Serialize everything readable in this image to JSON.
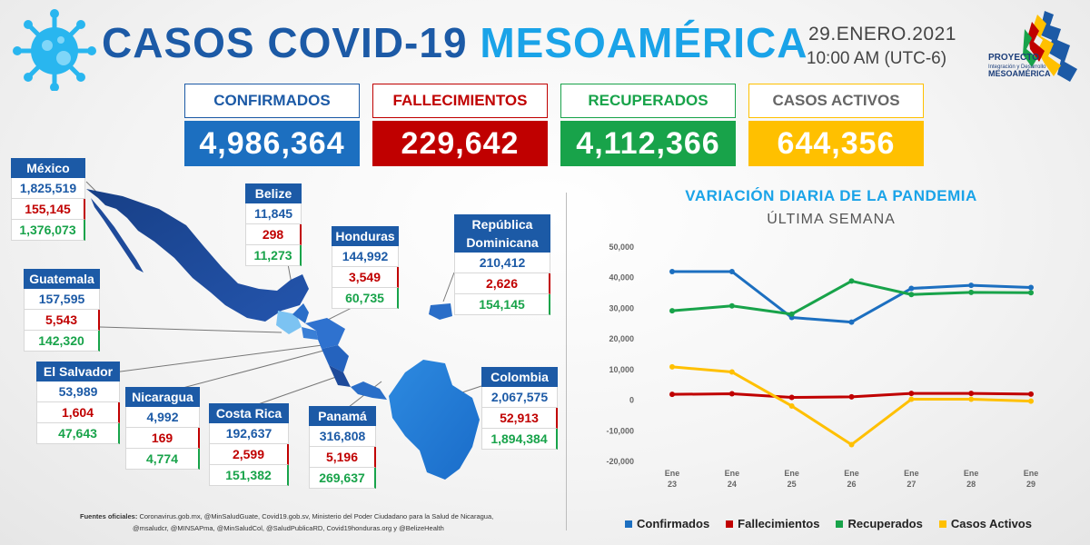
{
  "header": {
    "title_part1": "CASOS COVID-19 ",
    "title_part2": "MESOAMÉRICA",
    "date": "29.ENERO.2021",
    "time": "10:00 AM (UTC-6)",
    "logo": {
      "line1": "PROYECTO",
      "line2": "Integración y Desarrollo",
      "line3": "MESOAMÉRICA"
    }
  },
  "kpis": [
    {
      "label": "CONFIRMADOS",
      "value": "4,986,364",
      "color": "#1c6fc0",
      "label_color": "#1c5aa6"
    },
    {
      "label": "FALLECIMIENTOS",
      "value": "229,642",
      "color": "#c00000",
      "label_color": "#c00000"
    },
    {
      "label": "RECUPERADOS",
      "value": "4,112,366",
      "color": "#18a34a",
      "label_color": "#18a34a"
    },
    {
      "label": "CASOS ACTIVOS",
      "value": "644,356",
      "color": "#ffc000",
      "label_color": "#666666"
    }
  ],
  "countries": [
    {
      "name": "México",
      "confirmed": "1,825,519",
      "deaths": "155,145",
      "recovered": "1,376,073"
    },
    {
      "name": "Belize",
      "confirmed": "11,845",
      "deaths": "298",
      "recovered": "11,273"
    },
    {
      "name": "Honduras",
      "confirmed": "144,992",
      "deaths": "3,549",
      "recovered": "60,735"
    },
    {
      "name": "República Dominicana",
      "confirmed": "210,412",
      "deaths": "2,626",
      "recovered": "154,145"
    },
    {
      "name": "Guatemala",
      "confirmed": "157,595",
      "deaths": "5,543",
      "recovered": "142,320"
    },
    {
      "name": "El Salvador",
      "confirmed": "53,989",
      "deaths": "1,604",
      "recovered": "47,643"
    },
    {
      "name": "Nicaragua",
      "confirmed": "4,992",
      "deaths": "169",
      "recovered": "4,774"
    },
    {
      "name": "Costa Rica",
      "confirmed": "192,637",
      "deaths": "2,599",
      "recovered": "151,382"
    },
    {
      "name": "Panamá",
      "confirmed": "316,808",
      "deaths": "5,196",
      "recovered": "269,637"
    },
    {
      "name": "Colombia",
      "confirmed": "2,067,575",
      "deaths": "52,913",
      "recovered": "1,894,384"
    }
  ],
  "sources": {
    "label": "Fuentes oficiales:",
    "line1": "Coronavirus.gob.mx, @MinSaludGuate, Covid19.gob.sv, Ministerio del Poder Ciudadano para la Salud de Nicaragua,",
    "line2": "@msaludcr, @MINSAPma, @MinSaludCol, @SaludPublicaRD, Covid19honduras.org y @BelizeHealth"
  },
  "chart_data": {
    "type": "line",
    "title": "VARIACIÓN DIARIA DE LA PANDEMIA",
    "subtitle": "ÚLTIMA SEMANA",
    "categories": [
      "Ene 23",
      "Ene 24",
      "Ene 25",
      "Ene 26",
      "Ene 27",
      "Ene 28",
      "Ene 29"
    ],
    "ylim": [
      -20000,
      50000
    ],
    "yticks": [
      -20000,
      -10000,
      0,
      10000,
      20000,
      30000,
      40000,
      50000
    ],
    "ytick_labels": [
      "-20,000",
      "-10,000",
      "0",
      "10,000",
      "20,000",
      "30,000",
      "40,000",
      "50,000"
    ],
    "grid": false,
    "legend_position": "bottom",
    "series": [
      {
        "name": "Confirmados",
        "color": "#1c6fc0",
        "values": [
          42000,
          42000,
          27000,
          25500,
          36500,
          37500,
          36800
        ]
      },
      {
        "name": "Fallecimientos",
        "color": "#c00000",
        "values": [
          1900,
          2100,
          900,
          1100,
          2200,
          2200,
          2000
        ]
      },
      {
        "name": "Recuperados",
        "color": "#18a34a",
        "values": [
          29200,
          30800,
          28100,
          38900,
          34500,
          35200,
          35100
        ]
      },
      {
        "name": "Casos Activos",
        "color": "#ffc000",
        "values": [
          10900,
          9200,
          -1900,
          -14500,
          300,
          300,
          -300
        ]
      }
    ]
  }
}
